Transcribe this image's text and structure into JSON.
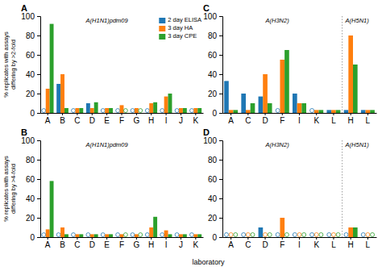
{
  "chart_data": [
    {
      "type": "bar",
      "title": "A",
      "annotations": [
        {
          "text": "A(H1N1)pdm09",
          "start": 0
        }
      ],
      "ylabel": "% replicates with assays\ndiffering by >2-fold",
      "categories": [
        "A",
        "B",
        "C",
        "D",
        "E",
        "F",
        "G",
        "H",
        "I",
        "J",
        "K"
      ],
      "series": [
        {
          "name": "2 day ELISA",
          "values": [
            0,
            30,
            0,
            10,
            0,
            0,
            0,
            0,
            0,
            0,
            0
          ]
        },
        {
          "name": "3 day HA",
          "values": [
            25,
            40,
            5,
            5,
            5,
            8,
            5,
            10,
            17,
            5,
            5
          ]
        },
        {
          "name": "3 day CPE",
          "values": [
            92,
            5,
            5,
            11,
            5,
            0,
            0,
            11,
            20,
            5,
            5
          ]
        }
      ],
      "ylim": [
        0,
        100
      ],
      "yticks": [
        0,
        20,
        40,
        60,
        80,
        100
      ],
      "legend": "upper right"
    },
    {
      "type": "bar",
      "title": "B",
      "annotations": [
        {
          "text": "A(H1N1)pdm09",
          "start": 0
        }
      ],
      "ylabel": "% replicates with assays\ndiffering by >4-fold",
      "categories": [
        "A",
        "B",
        "C",
        "D",
        "E",
        "F",
        "G",
        "H",
        "I",
        "J",
        "K"
      ],
      "series": [
        {
          "values": [
            0,
            0,
            0,
            0,
            0,
            0,
            0,
            0,
            0,
            0,
            0
          ]
        },
        {
          "values": [
            8,
            10,
            3,
            3,
            3,
            3,
            3,
            10,
            7,
            3,
            3
          ]
        },
        {
          "values": [
            58,
            3,
            3,
            3,
            3,
            0,
            0,
            21,
            3,
            3,
            3
          ]
        }
      ],
      "ylim": [
        0,
        100
      ],
      "yticks": [
        0,
        20,
        40,
        60,
        80,
        100
      ]
    },
    {
      "type": "bar",
      "title": "C",
      "annotations": [
        {
          "text": "A(H3N2)",
          "start": 0
        },
        {
          "text": "A(H5N1)",
          "start": 7
        }
      ],
      "categories": [
        "A",
        "C",
        "D",
        "F",
        "I",
        "K",
        "L",
        "H",
        "L"
      ],
      "series": [
        {
          "values": [
            33,
            20,
            17,
            0,
            20,
            0,
            3,
            3,
            3
          ]
        },
        {
          "values": [
            3,
            3,
            40,
            55,
            10,
            3,
            3,
            80,
            3
          ]
        },
        {
          "values": [
            3,
            10,
            10,
            65,
            10,
            3,
            3,
            50,
            3
          ]
        }
      ],
      "ylim": [
        0,
        100
      ],
      "yticks": [
        0,
        20,
        40,
        60,
        80,
        100
      ]
    },
    {
      "type": "bar",
      "title": "D",
      "annotations": [
        {
          "text": "A(H3N2)",
          "start": 0
        },
        {
          "text": "A(H5N1)",
          "start": 7
        }
      ],
      "xlabel": "laboratory",
      "categories": [
        "A",
        "C",
        "D",
        "F",
        "I",
        "K",
        "L",
        "H",
        "L"
      ],
      "series": [
        {
          "values": [
            0,
            0,
            10,
            0,
            0,
            0,
            0,
            0,
            0
          ]
        },
        {
          "values": [
            0,
            0,
            0,
            20,
            0,
            0,
            0,
            10,
            0
          ]
        },
        {
          "values": [
            0,
            0,
            0,
            0,
            0,
            0,
            0,
            10,
            0
          ]
        }
      ],
      "ylim": [
        0,
        100
      ],
      "yticks": [
        0,
        20,
        40,
        60,
        80,
        100
      ]
    }
  ]
}
